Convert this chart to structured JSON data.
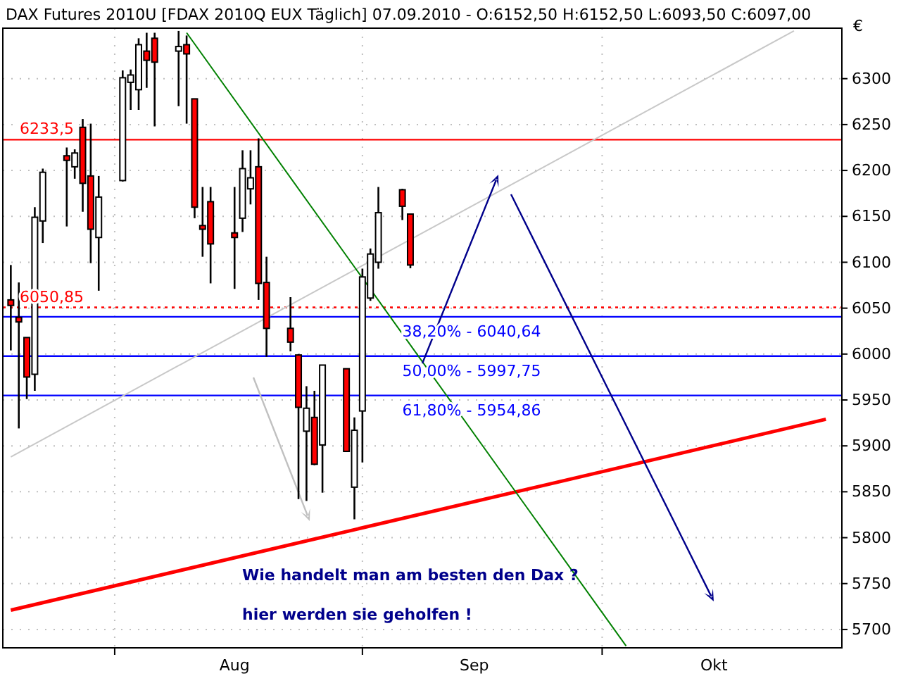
{
  "chart_data": {
    "type": "candlestick",
    "title": "DAX Futures 2010U [FDAX 2010Q EUX  Täglich] 07.09.2010 - O:6152,50 H:6152,50 L:6093,50 C:6097,00",
    "ylabel": "€",
    "x": [
      "2010-07-19",
      "2010-07-20",
      "2010-07-21",
      "2010-07-22",
      "2010-07-23",
      "2010-07-26",
      "2010-07-27",
      "2010-07-28",
      "2010-07-29",
      "2010-07-30",
      "2010-08-02",
      "2010-08-03",
      "2010-08-04",
      "2010-08-05",
      "2010-08-06",
      "2010-08-09",
      "2010-08-10",
      "2010-08-11",
      "2010-08-12",
      "2010-08-13",
      "2010-08-16",
      "2010-08-17",
      "2010-08-18",
      "2010-08-19",
      "2010-08-20",
      "2010-08-23",
      "2010-08-24",
      "2010-08-25",
      "2010-08-26",
      "2010-08-27",
      "2010-08-30",
      "2010-08-31",
      "2010-09-01",
      "2010-09-02",
      "2010-09-03",
      "2010-09-06",
      "2010-09-07"
    ],
    "ohlc": [
      [
        6059,
        6097,
        6004,
        6053
      ],
      [
        6040,
        6078,
        5919,
        6035
      ],
      [
        6018,
        6018,
        5951,
        5975
      ],
      [
        5978,
        6160,
        5960,
        6149
      ],
      [
        6145,
        6202,
        6121,
        6198
      ],
      [
        6216,
        6225,
        6139,
        6211
      ],
      [
        6204,
        6223,
        6191,
        6219
      ],
      [
        6247,
        6256,
        6155,
        6186
      ],
      [
        6194,
        6251,
        6099,
        6136
      ],
      [
        6127,
        6194,
        6069,
        6171
      ],
      [
        6189,
        6309,
        6188,
        6301
      ],
      [
        6296,
        6310,
        6266,
        6304
      ],
      [
        6288,
        6344,
        6266,
        6337
      ],
      [
        6330,
        6350,
        6290,
        6320
      ],
      [
        6344,
        6350,
        6248,
        6318
      ],
      [
        6330,
        6352,
        6270,
        6335
      ],
      [
        6337,
        6347,
        6251,
        6327
      ],
      [
        6278,
        6278,
        6148,
        6160
      ],
      [
        6140,
        6182,
        6106,
        6136
      ],
      [
        6166,
        6182,
        6077,
        6120
      ],
      [
        6132,
        6182,
        6071,
        6127
      ],
      [
        6148,
        6222,
        6133,
        6202
      ],
      [
        6180,
        6222,
        6163,
        6192
      ],
      [
        6204,
        6235,
        6059,
        6077
      ],
      [
        6078,
        6106,
        5997,
        6028
      ],
      [
        6028,
        6062,
        6003,
        6013
      ],
      [
        5999,
        6000,
        5842,
        5942
      ],
      [
        5916,
        5965,
        5840,
        5941
      ],
      [
        5931,
        5960,
        5879,
        5880
      ],
      [
        5901,
        5988,
        5849,
        5988
      ],
      [
        5984,
        5984,
        5894,
        5894
      ],
      [
        5855,
        5931,
        5820,
        5917
      ],
      [
        5938,
        6093,
        5882,
        6084
      ],
      [
        6061,
        6115,
        6058,
        6109
      ],
      [
        6100,
        6182,
        6093,
        6154
      ],
      [
        6179,
        6180,
        6146,
        6161
      ],
      [
        6152.5,
        6152.5,
        6093.5,
        6097
      ]
    ],
    "series": [
      {
        "type": "line",
        "color": "#c8c8c8",
        "x": [
          "2010-07-19",
          "2010-10-25"
        ],
        "values": [
          5888,
          6352
        ]
      },
      {
        "type": "line",
        "color": "#ff0000",
        "x": [
          "2010-07-19",
          "2010-10-29"
        ],
        "values": [
          5721,
          5929
        ]
      },
      {
        "type": "line",
        "color": "#008000",
        "x": [
          "2010-08-10",
          "2010-10-04"
        ],
        "values": [
          6350,
          5682
        ]
      }
    ],
    "ref_lines": [
      {
        "axis": "y",
        "value": 6233.5,
        "label": "6233,5",
        "color": "#ff0000",
        "line_style": "solid"
      },
      {
        "axis": "y",
        "value": 6050.85,
        "label": "6050,85",
        "color": "#ff0000",
        "line_style": "dotted"
      },
      {
        "axis": "y",
        "value": 6040.64,
        "color": "#0000ff",
        "line_style": "solid"
      },
      {
        "axis": "y",
        "value": 5997.75,
        "color": "#0000ff",
        "line_style": "solid"
      },
      {
        "axis": "y",
        "value": 5954.86,
        "color": "#0000ff",
        "line_style": "solid"
      }
    ],
    "annotations": [
      "Wie handelt man am besten den Dax ?",
      "hier werden sie geholfen !",
      {
        "text": "38,20% - 6040,64",
        "x": "2010-09-06",
        "y": 6040.64
      },
      {
        "text": "50,00% - 5997,75",
        "x": "2010-09-06",
        "y": 5997.75
      },
      {
        "text": "61,80% - 5954,86",
        "x": "2010-09-06",
        "y": 5954.86
      }
    ],
    "xlim": [
      "2010-07-18",
      "2010-10-31"
    ],
    "xticks": [
      {
        "value": "2010-08-01",
        "label": null
      },
      {
        "value": "2010-08-16",
        "label": "Aug"
      },
      {
        "value": "2010-09-01",
        "label": null
      },
      {
        "value": "2010-09-15",
        "label": "Sep"
      },
      {
        "value": "2010-10-01",
        "label": null
      },
      {
        "value": "2010-10-15",
        "label": "Okt"
      }
    ],
    "ylim": [
      5680,
      6355
    ],
    "yticks": [
      5700,
      5750,
      5800,
      5850,
      5900,
      5950,
      6000,
      6050,
      6100,
      6150,
      6200,
      6250,
      6300
    ],
    "grid": true
  }
}
